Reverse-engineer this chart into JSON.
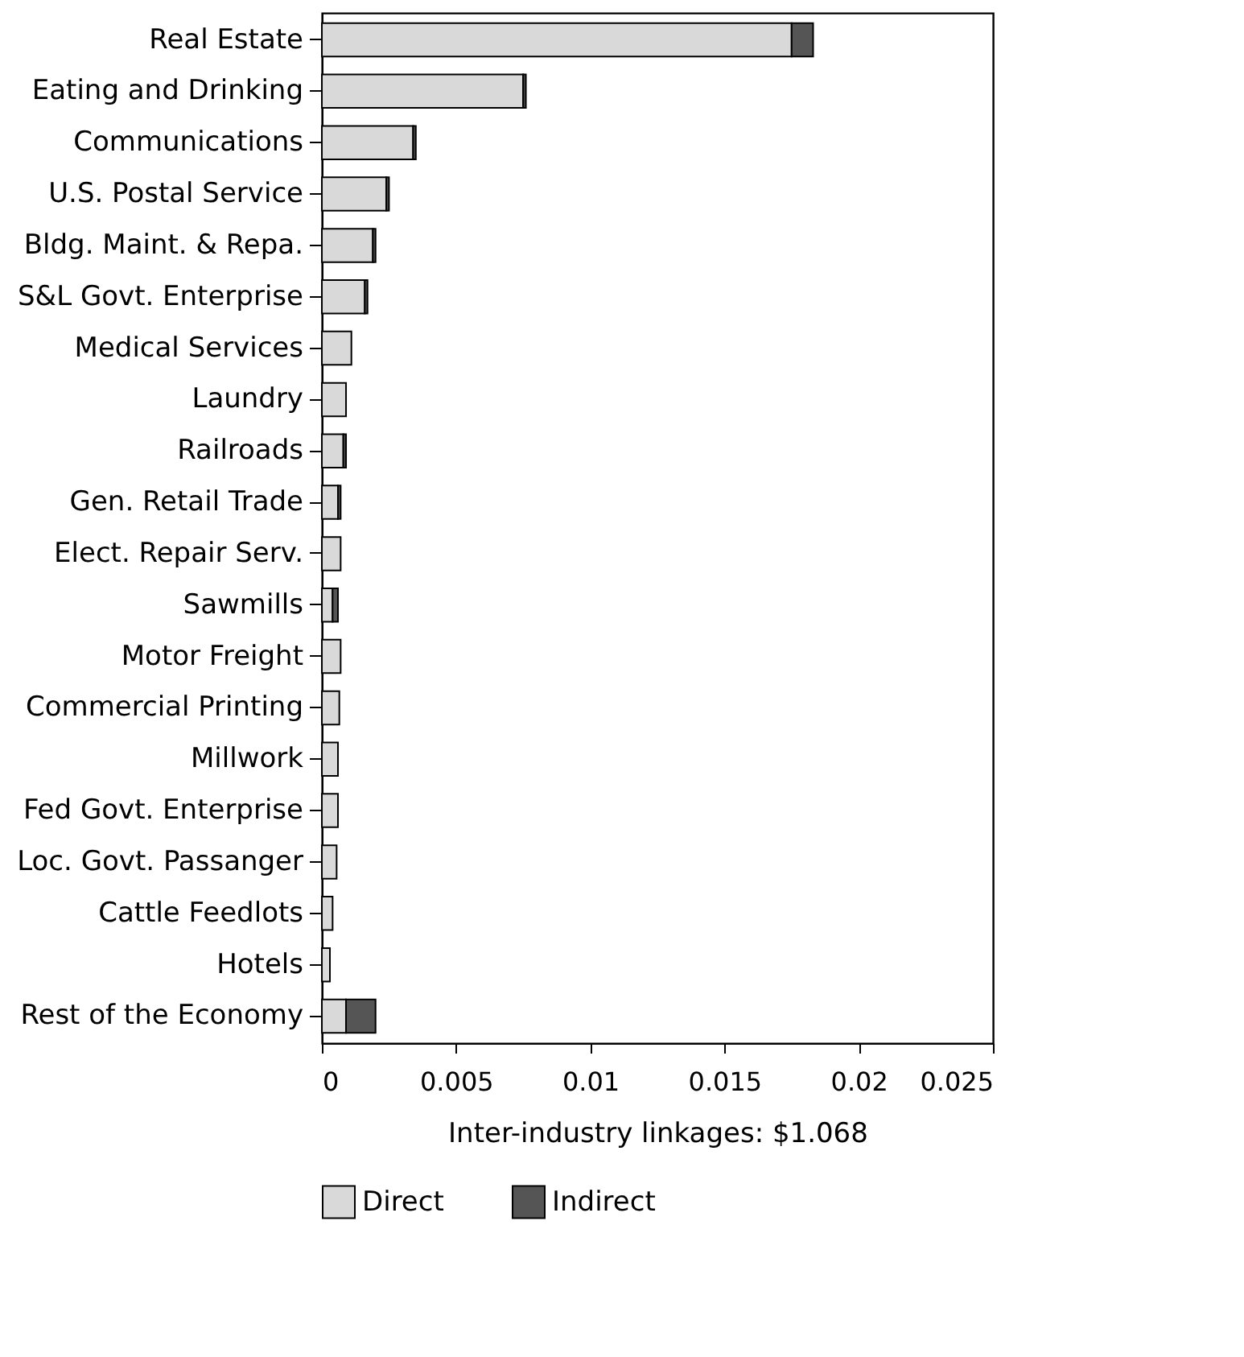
{
  "chart_data": {
    "type": "bar",
    "orientation": "horizontal",
    "stacked": true,
    "categories": [
      "Real Estate",
      "Eating and Drinking",
      "Communications",
      "U.S. Postal Service",
      "Bldg. Maint. & Repa.",
      "S&L Govt. Enterprise",
      "Medical Services",
      "Laundry",
      "Railroads",
      "Gen. Retail Trade",
      "Elect. Repair Serv.",
      "Sawmills",
      "Motor Freight",
      "Commercial Printing",
      "Millwork",
      "Fed Govt. Enterprise",
      "Loc. Govt. Passanger",
      "Cattle Feedlots",
      "Hotels",
      "Rest of the Economy"
    ],
    "series": [
      {
        "name": "Direct",
        "color": "#d9d9d9",
        "values": [
          0.0175,
          0.0075,
          0.0034,
          0.0024,
          0.0019,
          0.0016,
          0.0011,
          0.0009,
          0.0008,
          0.0006,
          0.0007,
          0.0004,
          0.0007,
          0.00065,
          0.0006,
          0.0006,
          0.00055,
          0.0004,
          0.0003,
          0.0009
        ]
      },
      {
        "name": "Indirect",
        "color": "#555555",
        "values": [
          0.0008,
          0.0001,
          0.0001,
          0.0001,
          0.0001,
          0.0001,
          null,
          null,
          0.0001,
          0.0001,
          null,
          0.0002,
          null,
          null,
          null,
          null,
          null,
          null,
          null,
          0.0011
        ]
      }
    ],
    "xlim": [
      0,
      0.025
    ],
    "xticks": [
      0,
      0.005,
      0.01,
      0.015,
      0.02,
      0.025
    ],
    "xlabel": "Inter-industry linkages: $1.068",
    "legend": "bottom",
    "grid": false
  }
}
